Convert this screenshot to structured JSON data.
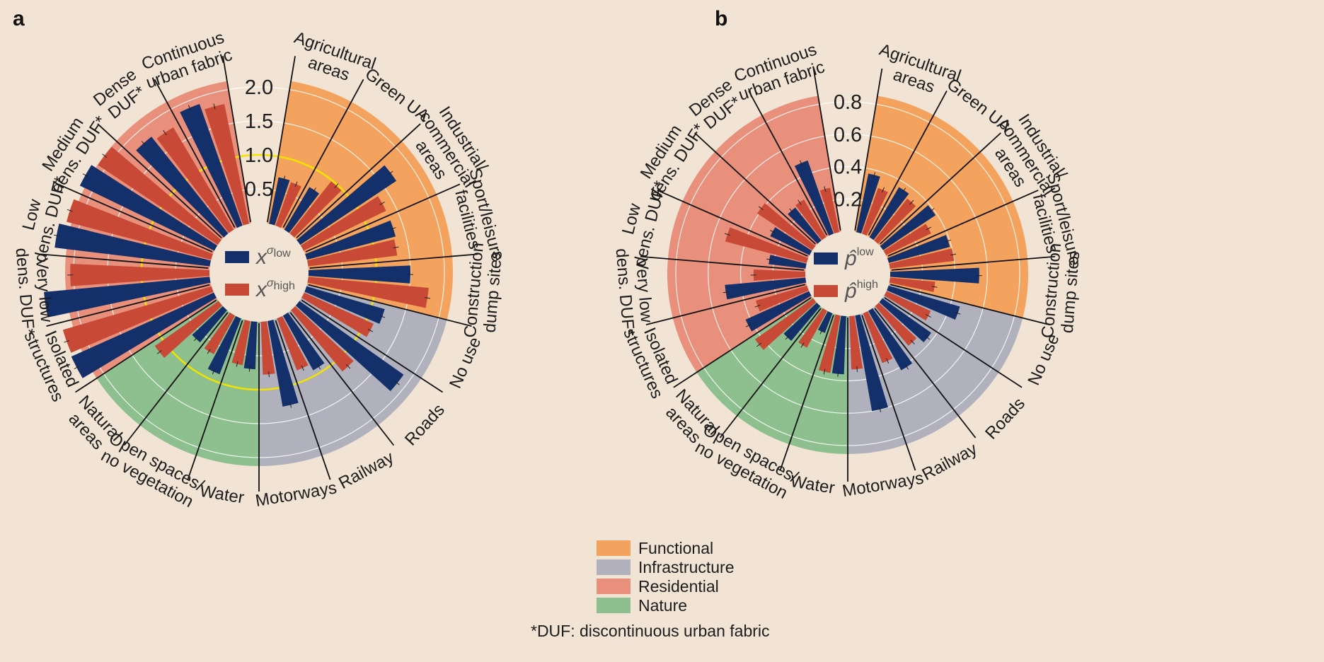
{
  "figure": {
    "footnote": "*DUF: discontinuous urban fabric",
    "legend": {
      "items": [
        {
          "label": "Functional",
          "color": "#f4a35e"
        },
        {
          "label": "Infrastructure",
          "color": "#b0b1bc"
        },
        {
          "label": "Residential",
          "color": "#e8907c"
        },
        {
          "label": "Nature",
          "color": "#8ebf8e"
        }
      ]
    },
    "colors": {
      "low": "#14306a",
      "high": "#c84a36",
      "background": "#f1e4d4",
      "reference_circle": "#f2e200"
    }
  },
  "chart_data": [
    {
      "type": "radial-bar",
      "panel": "a",
      "ticks": [
        "2.0",
        "1.5",
        "1.0",
        "0.5"
      ],
      "tick_values": [
        2.0,
        1.5,
        1.0,
        0.5
      ],
      "rmax": 2.0,
      "reference_value": 1.0,
      "inner_legend": {
        "low": {
          "base": "x",
          "sup_sym": "σ",
          "sup_sub": "low"
        },
        "high": {
          "base": "x",
          "sup_sym": "σ",
          "sup_sub": "high"
        }
      },
      "categories": [
        {
          "label": "Agricultural areas",
          "lines": [
            "Agricultural",
            "areas"
          ],
          "group": "Functional"
        },
        {
          "label": "Green UA",
          "lines": [
            "Green UA"
          ],
          "group": "Functional"
        },
        {
          "label": "Industrial/ commercial areas",
          "lines": [
            "Industrial/",
            "commercial",
            "areas"
          ],
          "group": "Functional"
        },
        {
          "label": "Sport/leisure facilities",
          "lines": [
            "Sport/leisure",
            "facilities"
          ],
          "group": "Functional"
        },
        {
          "label": "Construction dump sites",
          "lines": [
            "Construction",
            "dump sites"
          ],
          "group": "Functional"
        },
        {
          "label": "No use",
          "lines": [
            "No use"
          ],
          "group": "Infrastructure"
        },
        {
          "label": "Roads",
          "lines": [
            "Roads"
          ],
          "group": "Infrastructure"
        },
        {
          "label": "Railway",
          "lines": [
            "Railway"
          ],
          "group": "Infrastructure"
        },
        {
          "label": "Motorways",
          "lines": [
            "Motorways"
          ],
          "group": "Infrastructure"
        },
        {
          "label": "Water",
          "lines": [
            "Water"
          ],
          "group": "Nature"
        },
        {
          "label": "Open spaces/ no vegetation",
          "lines": [
            "Open spaces/",
            "no vegetation"
          ],
          "group": "Nature"
        },
        {
          "label": "Natural areas",
          "lines": [
            "Natural",
            "areas"
          ],
          "group": "Nature"
        },
        {
          "label": "Isolated structures",
          "lines": [
            "Isolated",
            "structures"
          ],
          "group": "Residential"
        },
        {
          "label": "Very low dens. DUF*",
          "lines": [
            "Very low",
            "dens. DUF*"
          ],
          "group": "Residential"
        },
        {
          "label": "Low dens. DUF*",
          "lines": [
            "Low",
            "dens. DUF*"
          ],
          "group": "Residential"
        },
        {
          "label": "Medium dens. DUF*",
          "lines": [
            "Medium",
            "dens. DUF*"
          ],
          "group": "Residential"
        },
        {
          "label": "Dense DUF*",
          "lines": [
            "Dense",
            "DUF*"
          ],
          "group": "Residential"
        },
        {
          "label": "Continuous urban fabric",
          "lines": [
            "Continuous",
            "urban fabric"
          ],
          "group": "Residential"
        }
      ],
      "series": [
        {
          "name": "low",
          "values": [
            0.7,
            0.73,
            1.7,
            1.35,
            1.5,
            1.2,
            1.88,
            0.92,
            1.28,
            0.7,
            0.88,
            0.62,
            2.3,
            2.45,
            2.3,
            2.2,
            1.82,
            1.9
          ]
        },
        {
          "name": "high",
          "values": [
            0.68,
            0.98,
            1.35,
            1.32,
            1.78,
            1.12,
            1.18,
            0.82,
            0.78,
            0.66,
            0.65,
            1.15,
            2.28,
            2.05,
            2.2,
            2.12,
            1.75,
            1.8
          ]
        }
      ]
    },
    {
      "type": "radial-bar",
      "panel": "b",
      "ticks": [
        "0.8",
        "0.6",
        "0.4",
        "0.2"
      ],
      "tick_values": [
        0.8,
        0.6,
        0.4,
        0.2
      ],
      "rmax": 0.8,
      "reference_value": null,
      "inner_legend": {
        "low": {
          "base": "p̂",
          "sup_sym": "",
          "sup_sub": "low"
        },
        "high": {
          "base": "p̂",
          "sup_sym": "",
          "sup_sub": "high"
        }
      },
      "categories": [
        {
          "label": "Agricultural areas",
          "lines": [
            "Agricultural",
            "areas"
          ],
          "group": "Functional"
        },
        {
          "label": "Green UA",
          "lines": [
            "Green UA"
          ],
          "group": "Functional"
        },
        {
          "label": "Industrial/ commercial areas",
          "lines": [
            "Industrial/",
            "commercial",
            "areas"
          ],
          "group": "Functional"
        },
        {
          "label": "Sport/leisure facilities",
          "lines": [
            "Sport/leisure",
            "facilities"
          ],
          "group": "Functional"
        },
        {
          "label": "Construction dump sites",
          "lines": [
            "Construction",
            "dump sites"
          ],
          "group": "Functional"
        },
        {
          "label": "No use",
          "lines": [
            "No use"
          ],
          "group": "Infrastructure"
        },
        {
          "label": "Roads",
          "lines": [
            "Roads"
          ],
          "group": "Infrastructure"
        },
        {
          "label": "Railway",
          "lines": [
            "Railway"
          ],
          "group": "Infrastructure"
        },
        {
          "label": "Motorways",
          "lines": [
            "Motorways"
          ],
          "group": "Infrastructure"
        },
        {
          "label": "Water",
          "lines": [
            "Water"
          ],
          "group": "Nature"
        },
        {
          "label": "Open spaces/ no vegetation",
          "lines": [
            "Open spaces/",
            "no vegetation"
          ],
          "group": "Nature"
        },
        {
          "label": "Natural areas",
          "lines": [
            "Natural",
            "areas"
          ],
          "group": "Nature"
        },
        {
          "label": "Isolated structures",
          "lines": [
            "Isolated",
            "structures"
          ],
          "group": "Residential"
        },
        {
          "label": "Very low dens. DUF*",
          "lines": [
            "Very low",
            "dens. DUF*"
          ],
          "group": "Residential"
        },
        {
          "label": "Low dens. DUF*",
          "lines": [
            "Low",
            "dens. DUF*"
          ],
          "group": "Residential"
        },
        {
          "label": "Medium dens. DUF*",
          "lines": [
            "Medium",
            "dens. DUF*"
          ],
          "group": "Residential"
        },
        {
          "label": "Dense DUF*",
          "lines": [
            "Dense",
            "DUF*"
          ],
          "group": "Residential"
        },
        {
          "label": "Continuous urban fabric",
          "lines": [
            "Continuous",
            "urban fabric"
          ],
          "group": "Residential"
        }
      ],
      "series": [
        {
          "name": "low",
          "values": [
            0.37,
            0.36,
            0.39,
            0.39,
            0.55,
            0.46,
            0.37,
            0.42,
            0.6,
            0.36,
            0.13,
            0.28,
            0.43,
            0.5,
            0.23,
            0.27,
            0.26,
            0.48
          ]
        },
        {
          "name": "high",
          "values": [
            0.3,
            0.33,
            0.31,
            0.4,
            0.28,
            0.3,
            0.32,
            0.33,
            0.33,
            0.36,
            0.26,
            0.44,
            0.33,
            0.32,
            0.52,
            0.41,
            0.27,
            0.28
          ]
        }
      ]
    }
  ]
}
